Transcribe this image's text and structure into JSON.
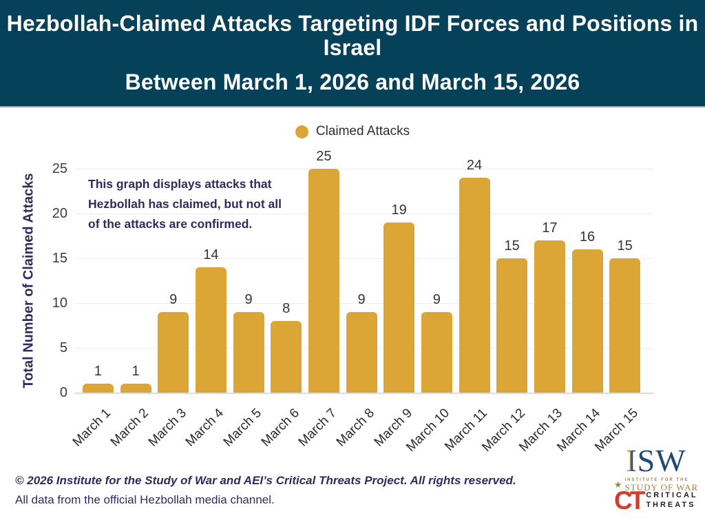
{
  "header": {
    "title_line1": "Hezbollah-Claimed Attacks Targeting IDF Forces and Positions in Israel",
    "title_line2": "Between March 1, 2026 and March 15, 2026"
  },
  "legend": {
    "label": "Claimed Attacks"
  },
  "annotation": {
    "line1": "This graph displays attacks that",
    "line2": "Hezbollah has claimed, but not all",
    "line3": "of the attacks are confirmed."
  },
  "chart_data": {
    "type": "bar",
    "title": "Hezbollah-Claimed Attacks Targeting IDF Forces and Positions in Israel Between March 1, 2026 and March 15, 2026",
    "categories": [
      "March 1",
      "March 2",
      "March 3",
      "March 4",
      "March 5",
      "March 6",
      "March 7",
      "March 8",
      "March 9",
      "March 10",
      "March 11",
      "March 12",
      "March 13",
      "March 14",
      "March 15"
    ],
    "values": [
      1,
      1,
      9,
      14,
      9,
      8,
      25,
      9,
      19,
      9,
      24,
      15,
      17,
      16,
      15
    ],
    "xlabel": "",
    "ylabel": "Total Number of Claimed Attacks",
    "yticks": [
      0,
      5,
      10,
      15,
      20,
      25
    ],
    "ylim": [
      0,
      25
    ],
    "grid": true,
    "legend_entries": [
      "Claimed Attacks"
    ],
    "legend_position": "top",
    "bar_color": "#dca637"
  },
  "footer": {
    "copyright": "© 2026 Institute for the Study of War and AEI’s Critical Threats Project. All rights reserved.",
    "source": "All data from the official Hezbollah media channel."
  },
  "logos": {
    "isw": {
      "acronym_first_letter": "I",
      "acronym_rest": "SW",
      "star": "★",
      "line1": "INSTITUTE FOR THE",
      "line2": "STUDY OF WAR"
    },
    "ct": {
      "acronym": "CT",
      "line1": "CRITICAL",
      "line2": "THREATS"
    }
  }
}
